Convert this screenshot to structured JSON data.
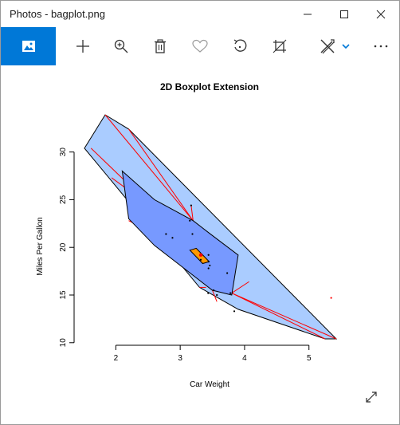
{
  "window": {
    "title": "Photos - bagplot.png"
  },
  "titlebar_controls": {
    "minimize_icon": "minimize-icon",
    "maximize_icon": "maximize-icon",
    "close_icon": "close-icon"
  },
  "toolbar": {
    "items": [
      "photo-icon",
      "add-icon",
      "zoom-in-icon",
      "delete-icon",
      "favorite-icon",
      "rotate-icon",
      "crop-icon",
      "edit-draw-icon",
      "chevron-down-icon",
      "more-icon"
    ],
    "accent_color": "#0078d7"
  },
  "chart_data": {
    "type": "scatter",
    "subtype": "bagplot",
    "title": "2D Boxplot Extension",
    "xlabel": "Car Weight",
    "ylabel": "Miles Per Gallon",
    "xlim": [
      1.513,
      5.424
    ],
    "ylim": [
      10.4,
      33.9
    ],
    "xticks": [
      "2",
      "3",
      "4",
      "5"
    ],
    "yticks": [
      "10",
      "15",
      "20",
      "25",
      "30"
    ],
    "colors": {
      "loop": "#aaccff",
      "bag": "#7799ff",
      "center": "#ff9900",
      "whisker": "#ff0000",
      "outlier": "#ff0000"
    },
    "loop_polygon": [
      [
        1.513,
        30.4
      ],
      [
        1.835,
        33.9
      ],
      [
        2.2,
        32.4
      ],
      [
        5.424,
        10.4
      ],
      [
        5.25,
        10.4
      ],
      [
        3.9,
        13.5
      ],
      [
        3.3,
        15.8
      ],
      [
        1.513,
        30.4
      ]
    ],
    "bag_polygon": [
      [
        2.1,
        28.0
      ],
      [
        2.6,
        25.0
      ],
      [
        3.2,
        22.8
      ],
      [
        3.45,
        21.5
      ],
      [
        3.9,
        19.2
      ],
      [
        3.8,
        15.0
      ],
      [
        3.5,
        15.5
      ],
      [
        2.6,
        20.2
      ],
      [
        2.2,
        23.0
      ],
      [
        2.1,
        28.0
      ]
    ],
    "center_polygon": [
      [
        3.15,
        19.7
      ],
      [
        3.25,
        19.9
      ],
      [
        3.45,
        18.5
      ],
      [
        3.35,
        18.3
      ],
      [
        3.15,
        19.7
      ]
    ],
    "center_point": [
      3.32,
      19.2
    ],
    "whisker_segments": [
      [
        [
          1.835,
          33.9
        ],
        [
          3.2,
          22.8
        ]
      ],
      [
        [
          2.2,
          32.4
        ],
        [
          3.2,
          22.8
        ]
      ],
      [
        [
          1.615,
          30.4
        ],
        [
          2.6,
          24.0
        ]
      ],
      [
        [
          1.935,
          27.3
        ],
        [
          2.6,
          24.0
        ]
      ],
      [
        [
          2.14,
          26.0
        ],
        [
          2.6,
          24.0
        ]
      ],
      [
        [
          2.2,
          22.8
        ],
        [
          2.6,
          21.4
        ]
      ],
      [
        [
          3.17,
          24.4
        ],
        [
          3.2,
          22.8
        ]
      ],
      [
        [
          5.424,
          10.4
        ],
        [
          3.8,
          15.2
        ]
      ],
      [
        [
          5.25,
          10.4
        ],
        [
          3.8,
          15.2
        ]
      ],
      [
        [
          4.07,
          16.4
        ],
        [
          3.8,
          15.2
        ]
      ],
      [
        [
          3.57,
          14.3
        ],
        [
          3.5,
          15.5
        ]
      ],
      [
        [
          3.3,
          15.8
        ],
        [
          3.4,
          15.8
        ]
      ]
    ],
    "points": [
      [
        3.17,
        24.4
      ],
      [
        3.19,
        21.4
      ],
      [
        2.78,
        21.4
      ],
      [
        2.88,
        21.0
      ],
      [
        3.44,
        19.2
      ],
      [
        3.46,
        18.1
      ],
      [
        3.44,
        17.8
      ],
      [
        3.57,
        15.0
      ],
      [
        3.73,
        17.3
      ],
      [
        3.78,
        15.2
      ],
      [
        3.84,
        13.3
      ],
      [
        3.52,
        15.5
      ],
      [
        3.435,
        15.2
      ],
      [
        3.15,
        22.8
      ],
      [
        3.32,
        18.7
      ],
      [
        3.44,
        18.5
      ]
    ],
    "outliers": [
      [
        5.345,
        14.7
      ]
    ],
    "grid": false,
    "legend": "none"
  }
}
